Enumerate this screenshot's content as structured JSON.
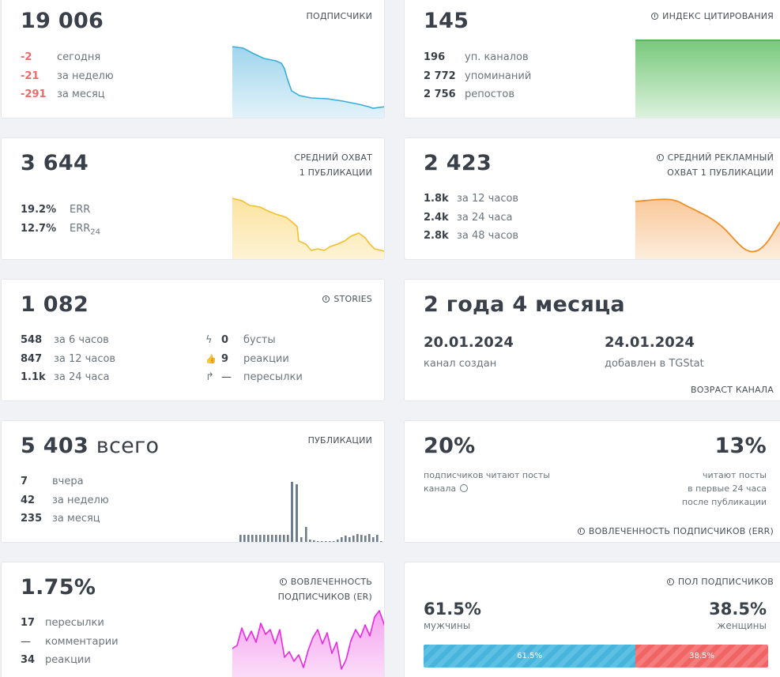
{
  "subscribers": {
    "value": "19 006",
    "label": "ПОДПИСЧИКИ",
    "stats": [
      {
        "value": "-2",
        "label": "сегодня"
      },
      {
        "value": "-21",
        "label": "за неделю"
      },
      {
        "value": "-291",
        "label": "за месяц"
      }
    ],
    "color": "#3cacd8"
  },
  "citation": {
    "value": "145",
    "label": "ИНДЕКС ЦИТИРОВАНИЯ",
    "stats": [
      {
        "value": "196",
        "label": "уп. каналов"
      },
      {
        "value": "2 772",
        "label": "упоминаний"
      },
      {
        "value": "2 756",
        "label": "репостов"
      }
    ],
    "color": "#52b85a"
  },
  "reach": {
    "value": "3 644",
    "label_line1": "СРЕДНИЙ ОХВАТ",
    "label_line2": "1 ПУБЛИКАЦИИ",
    "stats": [
      {
        "value": "19.2%",
        "label": "ERR"
      },
      {
        "value": "12.7%",
        "label": "ERR",
        "sub": "24"
      }
    ],
    "color": "#f3bf2d"
  },
  "ad_reach": {
    "value": "2 423",
    "label_line1": "СРЕДНИЙ РЕКЛАМНЫЙ",
    "label_line2": "ОХВАТ 1 ПУБЛИКАЦИИ",
    "stats": [
      {
        "value": "1.8k",
        "label": "за 12 часов"
      },
      {
        "value": "2.4k",
        "label": "за 24 часа"
      },
      {
        "value": "2.8k",
        "label": "за 48 часов"
      }
    ],
    "color": "#f28e24"
  },
  "stories": {
    "value": "1 082",
    "label": "STORIES",
    "stats_left": [
      {
        "value": "548",
        "label": "за 6 часов"
      },
      {
        "value": "847",
        "label": "за 12 часов"
      },
      {
        "value": "1.1k",
        "label": "за 24 часа"
      }
    ],
    "stats_right": [
      {
        "icon": "lightning-icon",
        "glyph": "ϟ",
        "value": "0",
        "label": "бусты"
      },
      {
        "icon": "thumbs-up-icon",
        "glyph": "👍",
        "value": "9",
        "label": "реакции"
      },
      {
        "icon": "forward-arrow-icon",
        "glyph": "↱",
        "value": "—",
        "label": "пересылки"
      }
    ]
  },
  "age": {
    "value": "2 года 4 месяца",
    "created_date": "20.01.2024",
    "created_label": "канал создан",
    "added_date": "24.01.2024",
    "added_label": "добавлен в TGStat",
    "label": "ВОЗРАСТ КАНАЛА"
  },
  "publications": {
    "value": "5 403",
    "unit": "всего",
    "label": "ПУБЛИКАЦИИ",
    "stats": [
      {
        "value": "7",
        "label": "вчера"
      },
      {
        "value": "42",
        "label": "за неделю"
      },
      {
        "value": "235",
        "label": "за месяц"
      }
    ],
    "color": "#6d7d8c"
  },
  "err": {
    "left_value": "20%",
    "left_line1": "подписчиков читают посты",
    "left_line2": "канала",
    "right_value": "13%",
    "right_line1": "читают посты",
    "right_line2": "в первые 24 часа",
    "right_line3": "после публикации",
    "label": "ВОВЛЕЧЕННОСТЬ ПОДПИСЧИКОВ (ERR)"
  },
  "er": {
    "value": "1.75%",
    "label_line1": "ВОВЛЕЧЕННОСТЬ",
    "label_line2": "ПОДПИСЧИКОВ (ER)",
    "stats": [
      {
        "value": "17",
        "label": "пересылки"
      },
      {
        "value": "—",
        "label": "комментарии"
      },
      {
        "value": "34",
        "label": "реакции"
      }
    ],
    "color": "#ea2ae0"
  },
  "gender": {
    "label": "ПОЛ ПОДПИСЧИКОВ",
    "male_value": "61.5%",
    "male_label": "мужчины",
    "female_value": "38.5%",
    "female_label": "женщины",
    "male_share": 61.5,
    "female_share": 38.5,
    "bar_male": "61.5%",
    "bar_female": "38.5%"
  }
}
